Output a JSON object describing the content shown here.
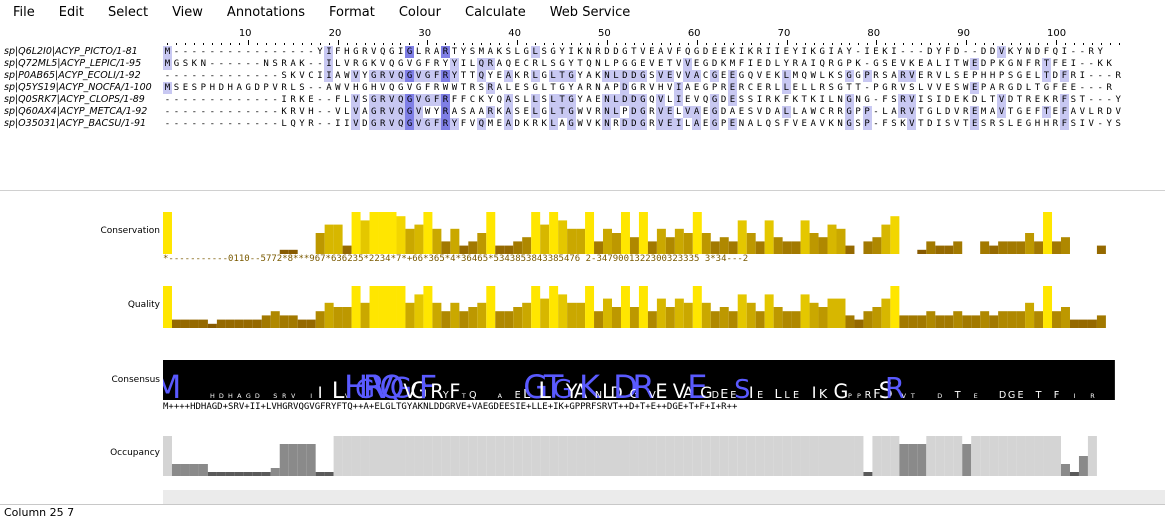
{
  "menu": [
    "File",
    "Edit",
    "Select",
    "View",
    "Annotations",
    "Format",
    "Colour",
    "Calculate",
    "Web Service"
  ],
  "ruler": {
    "labels": [
      "10",
      "20",
      "30",
      "40",
      "50",
      "60",
      "70",
      "80",
      "90",
      "100"
    ]
  },
  "sequences": [
    {
      "name": "sp|Q6L2I0|ACYP_PICTO/1-81",
      "seq": "M----------------YIFHGRVQGIGLRARTYSMAKSLGLSGYIKNRDDGTVEAVFQGDEEKIKRIIEYIKGIAY-IEKI---DYFD--DDVKYNDFQI--RY"
    },
    {
      "name": "sp|Q72ML5|ACYP_LEPIC/1-95",
      "seq": "MGSKN------NSRAK--ILVRGKVQGVGFRYYILQRAQECRLSGYTQNLPGGEVETVVEGDKMFIEDLYRAIQRGPK-GSEVKEALITWEDPKGNFRTFEI--KK"
    },
    {
      "name": "sp|P0AB65|ACYP_ECOLI/1-92",
      "seq": "-------------SKVCIIAWVYGRVQGVGFRYTTQYEAKRLGLTGYAKNLDDGSVEVVACGEEGQVEKLMQWLKSGGPRSARVERVLSEPHHPSGELTDFRI---R"
    },
    {
      "name": "sp|Q5YS19|ACYP_NOCFA/1-100",
      "seq": "MSESPHDHAGDPVRLS--AWVHGHVQGVGFRWWTRSRALESGLTGYARNAPDGRVHVIAEGPRERCERLLELLRSGTT-PGRVSLVVESWEPARGDLTGFEE---R"
    },
    {
      "name": "sp|Q0SRK7|ACYP_CLOPS/1-89",
      "seq": "-------------IRKE--FLVSGRVQGVGFRFFCKYQASLLSLTGYAENLDDGQVLIEVQGDESSIRKFKTKILNGNG-FSRVISIDEKDLTVDTREKRFST---Y"
    },
    {
      "name": "sp|Q60AX4|ACYP_METCA/1-92",
      "seq": "-------------KRVH--VLVAGRVQGVWYRASAARKASELGLTGWVRNLPDGRVELVAEGDAESVDALLAWCRRGPP-LARVTGLDVREMAVTGEFTEFAVLRDV"
    },
    {
      "name": "sp|O35031|ACYP_BACSU/1-91",
      "seq": "-------------LQYR--IIVDGRVQGVGFRYFVQMEADKRKLAGWVKNRDDGRVEILAEGPENALQSFVEAVKNGSP-FSKVTDISVTESRSLEGHHRFSIV-YS"
    }
  ],
  "annotations": {
    "conservation": {
      "label": "Conservation",
      "digits": "*-----------0110--5772*8***967*636235*2234*7*+66*365*4*36465*5343853843385476 2-3479001322300323335 3*34---2",
      "values": [
        10,
        0,
        0,
        0,
        0,
        0,
        0,
        0,
        0,
        0,
        0,
        0,
        0,
        1,
        1,
        0,
        0,
        5,
        7,
        7,
        2,
        10,
        8,
        10,
        10,
        10,
        9,
        6,
        7,
        10,
        6,
        3,
        6,
        2,
        3,
        5,
        10,
        2,
        2,
        3,
        4,
        10,
        7,
        10,
        8,
        6,
        6,
        10,
        3,
        6,
        5,
        10,
        4,
        10,
        3,
        6,
        4,
        6,
        5,
        10,
        5,
        3,
        4,
        3,
        8,
        5,
        3,
        8,
        4,
        3,
        3,
        8,
        5,
        4,
        7,
        6,
        2,
        0,
        3,
        4,
        7,
        9,
        0,
        0,
        1,
        3,
        2,
        2,
        3,
        0,
        0,
        3,
        2,
        3,
        3,
        3,
        5,
        3,
        10,
        3,
        4,
        0,
        0,
        0,
        2
      ]
    },
    "quality": {
      "label": "Quality",
      "values": [
        10,
        2,
        2,
        2,
        2,
        1,
        2,
        2,
        2,
        2,
        2,
        3,
        4,
        3,
        3,
        2,
        2,
        4,
        6,
        5,
        5,
        10,
        6,
        10,
        10,
        10,
        10,
        6,
        8,
        10,
        6,
        4,
        6,
        4,
        5,
        6,
        10,
        4,
        4,
        5,
        6,
        10,
        7,
        10,
        8,
        6,
        6,
        10,
        4,
        7,
        5,
        10,
        5,
        10,
        4,
        7,
        5,
        7,
        6,
        10,
        6,
        4,
        5,
        4,
        8,
        6,
        4,
        8,
        5,
        4,
        4,
        8,
        6,
        5,
        7,
        7,
        3,
        2,
        4,
        5,
        7,
        10,
        3,
        3,
        3,
        4,
        3,
        3,
        4,
        3,
        3,
        4,
        3,
        4,
        4,
        4,
        6,
        4,
        10,
        4,
        5,
        2,
        2,
        2,
        3
      ]
    },
    "consensus": {
      "label": "Consensus",
      "text": "M++++HDHAGD+SRV+II+LVHGRVQGVGFRYFTQ++A+ELGLTGYAKNLDDGRVE+VAEGDEESIE+LLE+IK+GPPRFSRVT++D+T+E++DGE+T+F+I+R++"
    },
    "occupancy": {
      "label": "Occupancy",
      "values": [
        10,
        3,
        3,
        3,
        3,
        1,
        1,
        1,
        1,
        1,
        1,
        1,
        2,
        8,
        8,
        8,
        8,
        1,
        1,
        10,
        10,
        10,
        10,
        10,
        10,
        10,
        10,
        10,
        10,
        10,
        10,
        10,
        10,
        10,
        10,
        10,
        10,
        10,
        10,
        10,
        10,
        10,
        10,
        10,
        10,
        10,
        10,
        10,
        10,
        10,
        10,
        10,
        10,
        10,
        10,
        10,
        10,
        10,
        10,
        10,
        10,
        10,
        10,
        10,
        10,
        10,
        10,
        10,
        10,
        10,
        10,
        10,
        10,
        10,
        10,
        10,
        10,
        10,
        1,
        10,
        10,
        10,
        8,
        8,
        8,
        10,
        10,
        10,
        10,
        8,
        10,
        10,
        10,
        10,
        10,
        10,
        10,
        10,
        10,
        10,
        3,
        1,
        5,
        10
      ]
    }
  },
  "status": {
    "text": "Column 25  7"
  },
  "colors": {
    "conserved_high": "#3b3bd8",
    "conserved_mid": "#7f7fe6",
    "conserved_low": "#c8c8f2",
    "cons_bar_high": "#ffe600",
    "cons_bar_low": "#7a4a00",
    "occupancy": "#d4d4d4"
  }
}
